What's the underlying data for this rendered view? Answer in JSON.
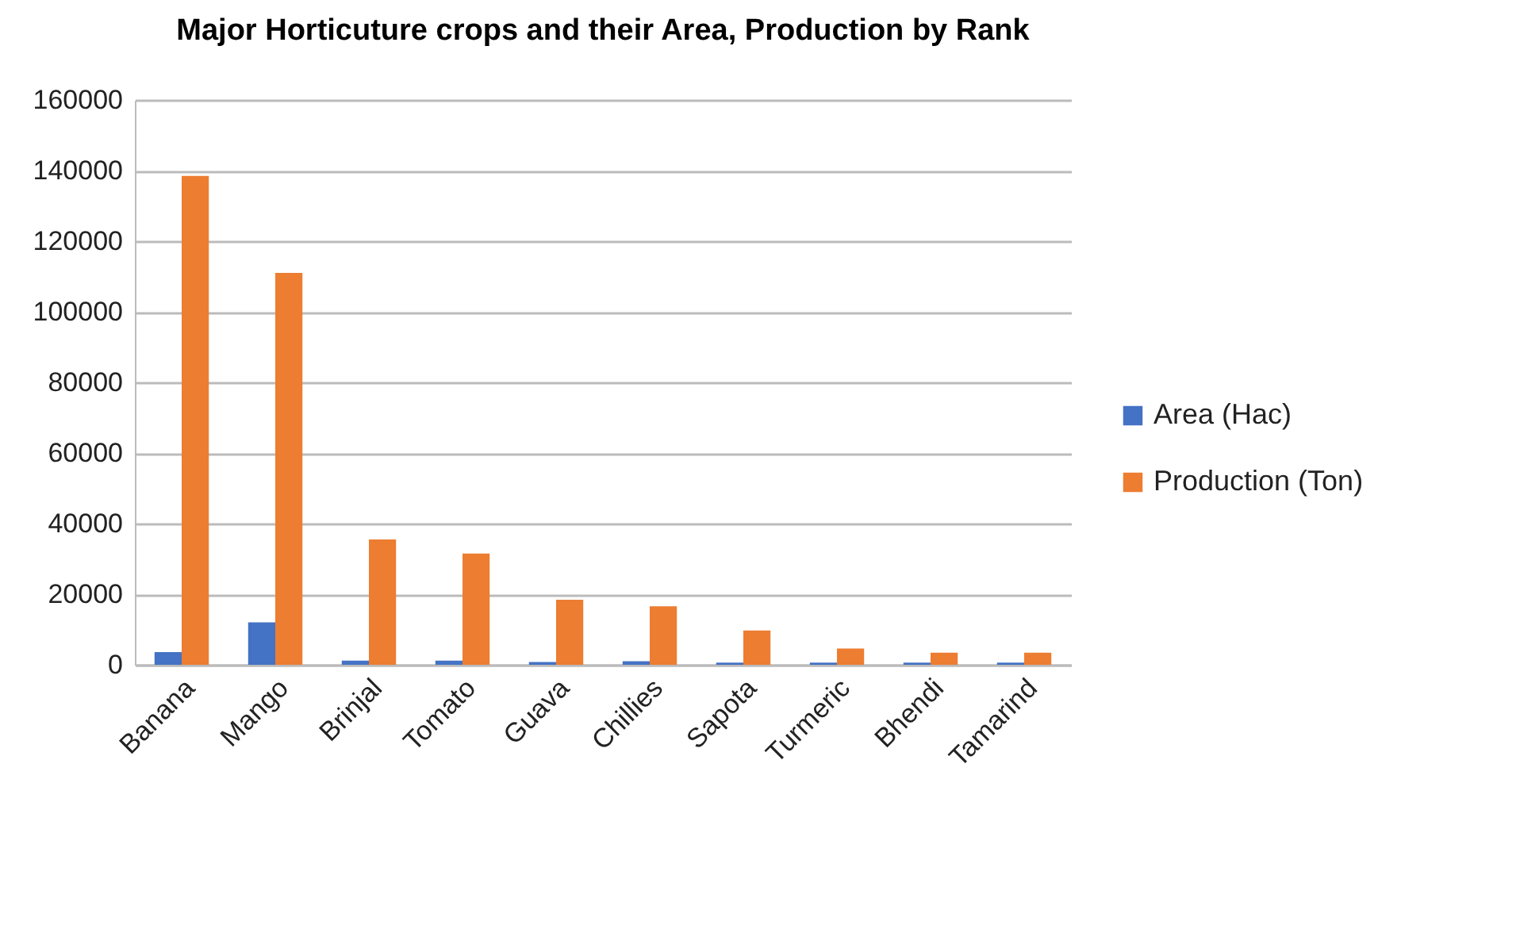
{
  "chart_data": {
    "type": "bar",
    "title": "Major Horticuture crops and their Area, Production by Rank",
    "categories": [
      "Banana",
      "Mango",
      "Brinjal",
      "Tomato",
      "Guava",
      "Chillies",
      "Sapota",
      "Turmeric",
      "Bhendi",
      "Tamarind"
    ],
    "series": [
      {
        "name": "Area (Hac)",
        "color": "#4472c4",
        "values": [
          3600,
          12000,
          1200,
          1200,
          800,
          1000,
          600,
          600,
          600,
          600
        ]
      },
      {
        "name": "Production (Ton)",
        "color": "#ed7d31",
        "values": [
          138500,
          111000,
          35500,
          31500,
          18400,
          16600,
          9700,
          4600,
          3400,
          3400
        ]
      }
    ],
    "ylim": [
      0,
      160000
    ],
    "yticks": [
      0,
      20000,
      40000,
      60000,
      80000,
      100000,
      120000,
      140000,
      160000
    ],
    "grid": "y",
    "legend": "right"
  }
}
